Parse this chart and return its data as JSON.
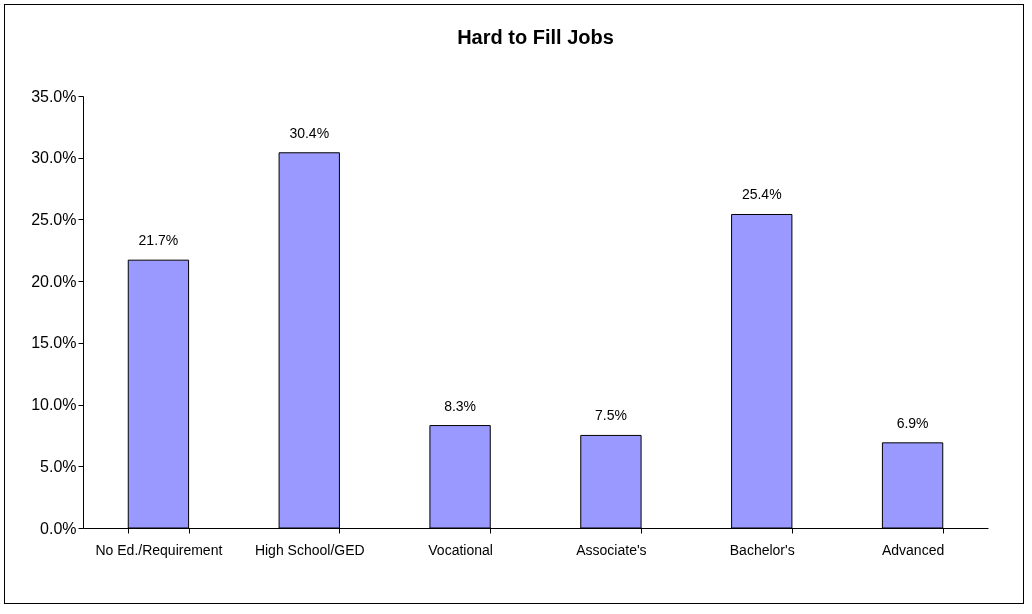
{
  "chart_data": {
    "type": "bar",
    "title": "Hard to Fill Jobs",
    "categories": [
      "No Ed./Requirement",
      "High School/GED",
      "Vocational",
      "Associate's",
      "Bachelor's",
      "Advanced"
    ],
    "values": [
      21.7,
      30.4,
      8.3,
      7.5,
      25.4,
      6.9
    ],
    "value_labels": [
      "21.7%",
      "30.4%",
      "8.3%",
      "7.5%",
      "25.4%",
      "6.9%"
    ],
    "color": "#9999ff",
    "ylim": [
      0,
      35
    ],
    "yticks": [
      {
        "value": 0,
        "label": "0.0%"
      },
      {
        "value": 5,
        "label": "5.0%"
      },
      {
        "value": 10,
        "label": "10.0%"
      },
      {
        "value": 15,
        "label": "15.0%"
      },
      {
        "value": 20,
        "label": "20.0%"
      },
      {
        "value": 25,
        "label": "25.0%"
      },
      {
        "value": 30,
        "label": "30.0%"
      },
      {
        "value": 35,
        "label": "35.0%"
      }
    ],
    "grid": false
  }
}
